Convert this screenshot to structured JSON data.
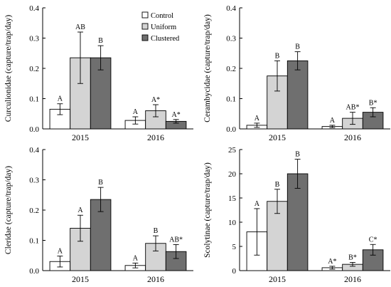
{
  "legend": [
    {
      "label": "Control",
      "color": "#ffffff"
    },
    {
      "label": "Uniform",
      "color": "#d4d4d4"
    },
    {
      "label": "Clustered",
      "color": "#6f6f6f"
    }
  ],
  "chart_data": [
    {
      "type": "bar",
      "ylabel": "Curculionidae (capture/trap/day)",
      "ylim": [
        0,
        0.4
      ],
      "yticks": [
        0,
        0.1,
        0.2,
        0.3,
        0.4
      ],
      "ytick_labels": [
        "0.0",
        "0.1",
        "0.2",
        "0.3",
        "0.4"
      ],
      "categories": [
        "2015",
        "2016"
      ],
      "legend_position": "top-right",
      "series": [
        {
          "name": "Control",
          "values": [
            0.065,
            0.028
          ],
          "errors": [
            0.018,
            0.012
          ],
          "letters": [
            "A",
            "A"
          ]
        },
        {
          "name": "Uniform",
          "values": [
            0.235,
            0.06
          ],
          "errors": [
            0.085,
            0.02
          ],
          "letters": [
            "AB",
            "A*"
          ]
        },
        {
          "name": "Clustered",
          "values": [
            0.235,
            0.025
          ],
          "errors": [
            0.04,
            0.006
          ],
          "letters": [
            "B",
            "A*"
          ]
        }
      ]
    },
    {
      "type": "bar",
      "ylabel": "Cerambycidae (capture/trap/day)",
      "ylim": [
        0,
        0.4
      ],
      "yticks": [
        0,
        0.1,
        0.2,
        0.3,
        0.4
      ],
      "ytick_labels": [
        "0.0",
        "0.1",
        "0.2",
        "0.3",
        "0.4"
      ],
      "categories": [
        "2015",
        "2016"
      ],
      "series": [
        {
          "name": "Control",
          "values": [
            0.012,
            0.008
          ],
          "errors": [
            0.007,
            0.004
          ],
          "letters": [
            "A",
            "A"
          ]
        },
        {
          "name": "Uniform",
          "values": [
            0.175,
            0.035
          ],
          "errors": [
            0.05,
            0.02
          ],
          "letters": [
            "B",
            "AB*"
          ]
        },
        {
          "name": "Clustered",
          "values": [
            0.225,
            0.055
          ],
          "errors": [
            0.03,
            0.015
          ],
          "letters": [
            "B",
            "B*"
          ]
        }
      ]
    },
    {
      "type": "bar",
      "ylabel": "Cleridae (capture/trap/day)",
      "ylim": [
        0,
        0.4
      ],
      "yticks": [
        0,
        0.1,
        0.2,
        0.3,
        0.4
      ],
      "ytick_labels": [
        "0.0",
        "0.1",
        "0.2",
        "0.3",
        "0.4"
      ],
      "categories": [
        "2015",
        "2016"
      ],
      "series": [
        {
          "name": "Control",
          "values": [
            0.03,
            0.017
          ],
          "errors": [
            0.018,
            0.008
          ],
          "letters": [
            "A",
            "A"
          ]
        },
        {
          "name": "Uniform",
          "values": [
            0.14,
            0.09
          ],
          "errors": [
            0.043,
            0.025
          ],
          "letters": [
            "A",
            "B"
          ]
        },
        {
          "name": "Clustered",
          "values": [
            0.235,
            0.063
          ],
          "errors": [
            0.04,
            0.023
          ],
          "letters": [
            "B",
            "AB*"
          ]
        }
      ]
    },
    {
      "type": "bar",
      "ylabel": "Scolytinae (capture/trap/day)",
      "ylim": [
        0,
        25
      ],
      "yticks": [
        0,
        5,
        10,
        15,
        20,
        25
      ],
      "ytick_labels": [
        "0",
        "5",
        "10",
        "15",
        "20",
        "25"
      ],
      "categories": [
        "2015",
        "2016"
      ],
      "series": [
        {
          "name": "Control",
          "values": [
            8.0,
            0.6
          ],
          "errors": [
            4.8,
            0.3
          ],
          "letters": [
            "A",
            "A*"
          ]
        },
        {
          "name": "Uniform",
          "values": [
            14.3,
            1.3
          ],
          "errors": [
            2.5,
            0.4
          ],
          "letters": [
            "B",
            "B*"
          ]
        },
        {
          "name": "Clustered",
          "values": [
            20.0,
            4.3
          ],
          "errors": [
            3.0,
            1.1
          ],
          "letters": [
            "B",
            "C*"
          ]
        }
      ]
    }
  ]
}
